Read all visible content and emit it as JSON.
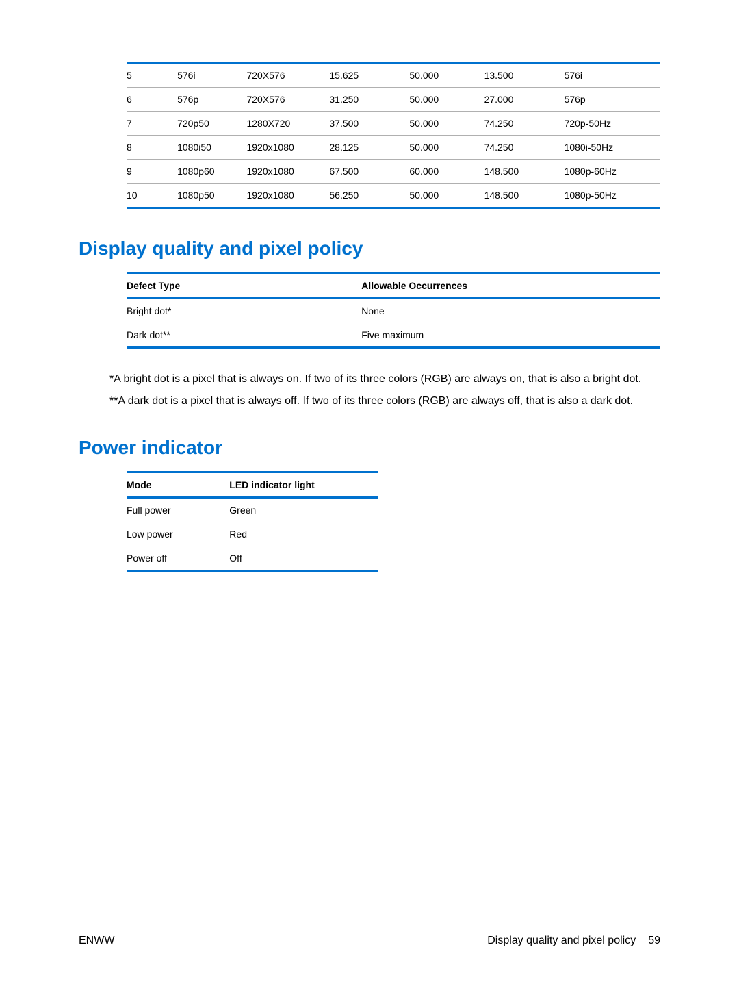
{
  "colors": {
    "accent": "#0071ce",
    "rule": "#b0b0b0",
    "text": "#000000",
    "background": "#ffffff"
  },
  "table1": {
    "type": "table",
    "rule_color": "#0071ce",
    "divider_color": "#b0b0b0",
    "font_size_pt": 10,
    "rows": [
      [
        "5",
        "576i",
        "720X576",
        "15.625",
        "50.000",
        "13.500",
        "576i"
      ],
      [
        "6",
        "576p",
        "720X576",
        "31.250",
        "50.000",
        "27.000",
        "576p"
      ],
      [
        "7",
        "720p50",
        "1280X720",
        "37.500",
        "50.000",
        "74.250",
        "720p-50Hz"
      ],
      [
        "8",
        "1080i50",
        "1920x1080",
        "28.125",
        "50.000",
        "74.250",
        "1080i-50Hz"
      ],
      [
        "9",
        "1080p60",
        "1920x1080",
        "67.500",
        "60.000",
        "148.500",
        "1080p-60Hz"
      ],
      [
        "10",
        "1080p50",
        "1920x1080",
        "56.250",
        "50.000",
        "148.500",
        "1080p-50Hz"
      ]
    ]
  },
  "section1": {
    "heading": "Display quality and pixel policy",
    "table": {
      "type": "table",
      "columns": [
        "Defect Type",
        "Allowable Occurrences"
      ],
      "rows": [
        [
          "Bright dot*",
          "None"
        ],
        [
          "Dark dot**",
          "Five maximum"
        ]
      ]
    },
    "footnote1": "*A bright dot is a pixel that is always on. If two of its three colors (RGB) are always on, that is also a bright dot.",
    "footnote2": "**A dark dot is a pixel that is always off. If two of its three colors (RGB) are always off, that is also a dark dot."
  },
  "section2": {
    "heading": "Power indicator",
    "table": {
      "type": "table",
      "columns": [
        "Mode",
        "LED indicator light"
      ],
      "rows": [
        [
          "Full power",
          "Green"
        ],
        [
          "Low power",
          "Red"
        ],
        [
          "Power off",
          "Off"
        ]
      ]
    }
  },
  "footer": {
    "left": "ENWW",
    "right_text": "Display quality and pixel policy",
    "page_number": "59"
  }
}
